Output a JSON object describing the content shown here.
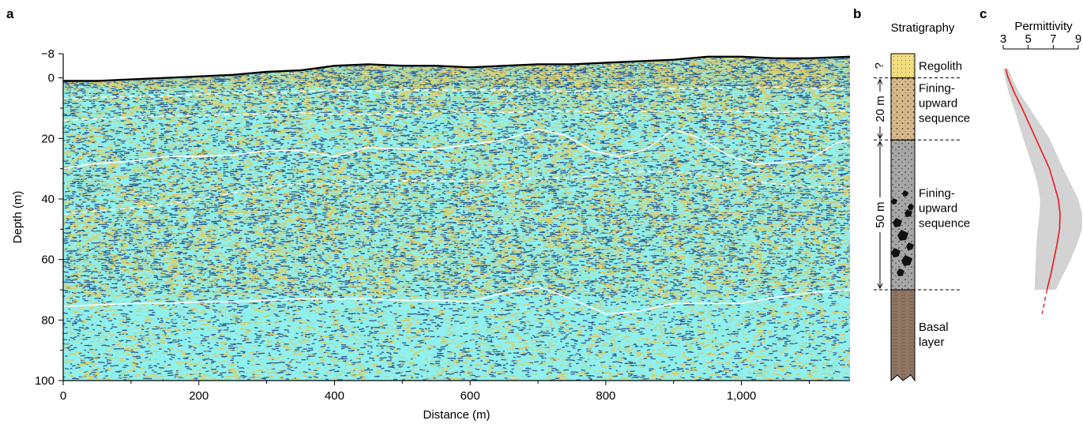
{
  "panels": {
    "a": "a",
    "b": "b",
    "c": "c"
  },
  "chart_data": [
    {
      "panel": "a",
      "type": "heatmap",
      "xlabel": "Distance (m)",
      "ylabel": "Depth (m)",
      "xlim": [
        0,
        1160
      ],
      "ylim": [
        -8,
        100
      ],
      "y_inverted": true,
      "xticks": [
        0,
        200,
        400,
        600,
        800,
        1000
      ],
      "xtick_labels": [
        "0",
        "200",
        "400",
        "600",
        "800",
        "1,000"
      ],
      "x_minor_ticks": [
        100,
        300,
        500,
        700,
        900,
        1100
      ],
      "yticks": [
        -8,
        0,
        20,
        40,
        60,
        80,
        100
      ],
      "ytick_labels": [
        "−8",
        "0",
        "20",
        "40",
        "60",
        "80",
        "100"
      ],
      "y_minor_ticks": [
        10,
        30,
        50,
        70,
        90
      ],
      "colors": {
        "background": "#8ff0ee",
        "positive": "#e8c347",
        "negative": "#25407a",
        "interface": "#ffffff",
        "surface": "#000000"
      },
      "surface": {
        "x": [
          0,
          50,
          100,
          150,
          200,
          250,
          300,
          350,
          400,
          450,
          500,
          550,
          600,
          650,
          700,
          750,
          800,
          850,
          900,
          950,
          1000,
          1050,
          1100,
          1160
        ],
        "depth": [
          1,
          1,
          0.5,
          0,
          -0.5,
          -1,
          -2,
          -2.5,
          -4,
          -4.5,
          -4,
          -4,
          -3.5,
          -4,
          -4.5,
          -4.5,
          -5,
          -5.5,
          -6,
          -7,
          -7,
          -6.5,
          -6.5,
          -7
        ]
      },
      "interfaces": [
        {
          "style": "dashed",
          "x": [
            0,
            50,
            100,
            150,
            200,
            250,
            300,
            350,
            400,
            450,
            500,
            550,
            600,
            650,
            700,
            750,
            800,
            850,
            900,
            950,
            1000,
            1050,
            1100,
            1160
          ],
          "depth": [
            7,
            6.5,
            6,
            6,
            5.5,
            5,
            5,
            4.5,
            4,
            4.5,
            4,
            4,
            4,
            4,
            4,
            4.5,
            4,
            4,
            3.5,
            3.5,
            3,
            3,
            3.5,
            3.5
          ]
        },
        {
          "style": "dashed",
          "x": [
            0,
            50,
            100,
            150,
            200,
            250,
            300,
            350,
            400,
            450,
            500,
            550,
            600,
            650,
            700,
            750,
            800,
            850,
            900,
            950,
            1000,
            1050,
            1100,
            1160
          ],
          "depth": [
            14,
            13.5,
            13,
            12.5,
            12.5,
            12,
            12,
            11.5,
            12,
            12,
            11.5,
            11,
            11,
            11.5,
            11,
            11,
            11.5,
            11,
            11,
            11,
            11,
            11.5,
            11,
            11
          ]
        },
        {
          "style": "solid",
          "x": [
            0,
            40,
            100,
            150,
            200,
            250,
            300,
            350,
            400,
            450,
            500,
            550,
            600,
            650,
            700,
            740,
            780,
            820,
            860,
            900,
            940,
            980,
            1020,
            1060,
            1100,
            1140,
            1160
          ],
          "depth": [
            30,
            28.5,
            27.5,
            26,
            26,
            25.5,
            24,
            24,
            26,
            23,
            23.5,
            23.5,
            22,
            20.5,
            17,
            19,
            24,
            26,
            23.5,
            17,
            20,
            25.5,
            28.5,
            28,
            27,
            21.5,
            20.5
          ]
        },
        {
          "style": "dashed",
          "x": [
            0,
            50,
            100,
            150,
            200,
            250,
            300,
            350,
            400,
            450,
            500,
            550,
            600,
            650,
            700,
            750,
            800,
            850,
            900,
            950,
            1000,
            1050,
            1100,
            1160
          ],
          "depth": [
            45,
            44,
            43,
            42,
            40,
            38,
            36,
            35,
            35,
            34,
            34,
            34,
            34,
            34,
            33,
            33,
            32,
            31,
            31,
            32,
            34,
            35,
            36,
            36.5
          ]
        },
        {
          "style": "solid",
          "x": [
            0,
            50,
            100,
            150,
            200,
            250,
            300,
            350,
            400,
            450,
            500,
            550,
            600,
            650,
            700,
            750,
            800,
            850,
            900,
            950,
            1000,
            1050,
            1100,
            1160
          ],
          "depth": [
            75.5,
            75,
            74.5,
            74.5,
            74,
            74,
            73.5,
            73,
            73,
            73,
            73.5,
            73.5,
            74,
            71,
            69,
            73,
            78,
            77,
            74.5,
            74.5,
            74.5,
            72.5,
            71,
            70
          ]
        }
      ]
    },
    {
      "panel": "b",
      "type": "strat_column",
      "title": "Stratigraphy",
      "units": [
        {
          "name": "Regolith",
          "depth_top": -8,
          "depth_bottom": 0,
          "color": "#f2dc82"
        },
        {
          "name": "Fining-\nupward\nsequence",
          "depth_top": 0,
          "depth_bottom": 20.5,
          "color": "#d6b98b"
        },
        {
          "name": "Fining-\nupward\nsequence",
          "depth_top": 20.5,
          "depth_bottom": 70,
          "color": "#a6a6a6"
        },
        {
          "name": "Basal\nlayer",
          "depth_top": 70,
          "depth_bottom": 100,
          "color": "#8f7763"
        }
      ],
      "unknown_marker": "?",
      "thickness_markers": [
        {
          "label": "20 m",
          "from": 0,
          "to": 20.5
        },
        {
          "label": "50 m",
          "from": 20.5,
          "to": 70
        }
      ]
    },
    {
      "panel": "c",
      "type": "line",
      "title": "Permittivity",
      "xticks": [
        3,
        5,
        7,
        9
      ],
      "xtick_labels": [
        "3",
        "5",
        "7",
        "9"
      ],
      "colors": {
        "line": "#e8191f",
        "band": "#d3d3d3"
      },
      "profile": {
        "depth": [
          -3,
          0,
          5,
          10,
          20,
          30,
          40,
          45,
          50,
          55,
          60,
          65,
          70
        ],
        "permittivity": [
          3.2,
          3.4,
          3.9,
          4.5,
          5.6,
          6.7,
          7.4,
          7.55,
          7.5,
          7.3,
          7.05,
          6.8,
          6.5
        ]
      },
      "extrapolation": {
        "depth": [
          70,
          78
        ],
        "permittivity": [
          6.5,
          6.1
        ]
      },
      "band": {
        "depth": [
          -3,
          0,
          5,
          10,
          20,
          30,
          35,
          40,
          45,
          50,
          55,
          60,
          65,
          70
        ],
        "lower": [
          3.0,
          3.15,
          3.45,
          3.85,
          4.6,
          5.4,
          5.75,
          5.95,
          5.9,
          5.75,
          5.65,
          5.6,
          5.55,
          5.5
        ],
        "upper": [
          3.4,
          3.7,
          4.3,
          5.1,
          6.7,
          7.8,
          8.4,
          9.0,
          9.3,
          9.3,
          8.9,
          8.4,
          7.8,
          7.2
        ]
      }
    }
  ]
}
